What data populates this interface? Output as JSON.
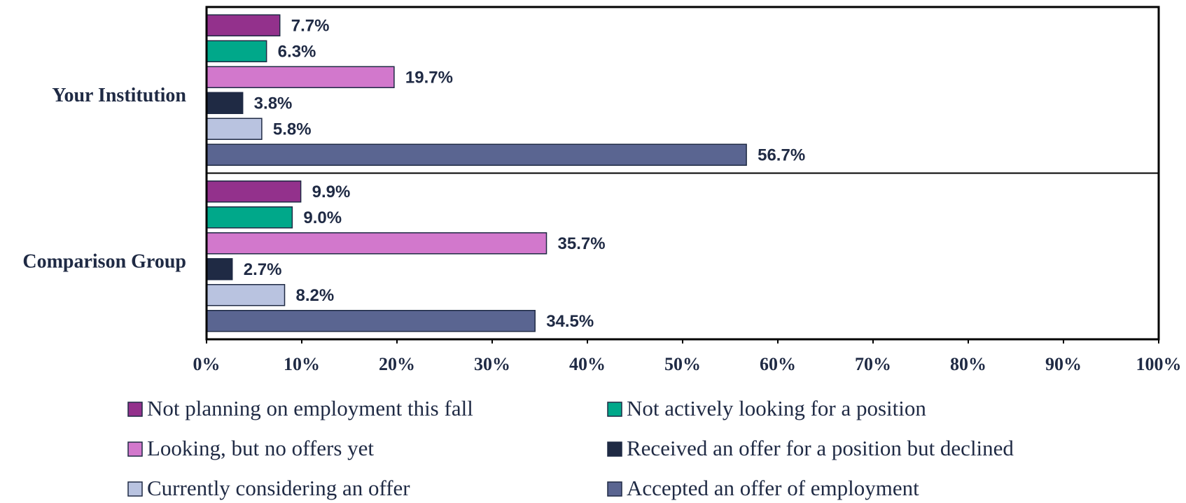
{
  "chart_data": {
    "type": "hbar",
    "categories": [
      "Your Institution",
      "Comparison Group"
    ],
    "series": [
      {
        "name": "Not planning on employment this fall",
        "color": "#93318c",
        "values": [
          7.7,
          9.9
        ],
        "value_labels": [
          "7.7%",
          "9.9%"
        ]
      },
      {
        "name": "Not actively looking for a position",
        "color": "#00a88a",
        "values": [
          6.3,
          9.0
        ],
        "value_labels": [
          "6.3%",
          "9.0%"
        ]
      },
      {
        "name": "Looking, but no offers yet",
        "color": "#d278cc",
        "values": [
          19.7,
          35.7
        ],
        "value_labels": [
          "19.7%",
          "35.7%"
        ]
      },
      {
        "name": "Received an offer for a position but declined",
        "color": "#1f2a44",
        "values": [
          3.8,
          2.7
        ],
        "value_labels": [
          "3.8%",
          "2.7%"
        ]
      },
      {
        "name": "Currently considering an offer",
        "color": "#b9c3e0",
        "values": [
          5.8,
          8.2
        ],
        "value_labels": [
          "5.8%",
          "8.2%"
        ]
      },
      {
        "name": "Accepted an offer of employment",
        "color": "#5a6591",
        "values": [
          56.7,
          34.5
        ],
        "value_labels": [
          "56.7%",
          "34.5%"
        ]
      }
    ],
    "xlim": [
      0,
      100
    ],
    "xticks": [
      {
        "value": 0,
        "label": "0%"
      },
      {
        "value": 10,
        "label": "10%"
      },
      {
        "value": 20,
        "label": "20%"
      },
      {
        "value": 30,
        "label": "30%"
      },
      {
        "value": 40,
        "label": "40%"
      },
      {
        "value": 50,
        "label": "50%"
      },
      {
        "value": 60,
        "label": "60%"
      },
      {
        "value": 70,
        "label": "70%"
      },
      {
        "value": 80,
        "label": "80%"
      },
      {
        "value": 90,
        "label": "90%"
      },
      {
        "value": 100,
        "label": "100%"
      }
    ],
    "legend": "bottom"
  }
}
